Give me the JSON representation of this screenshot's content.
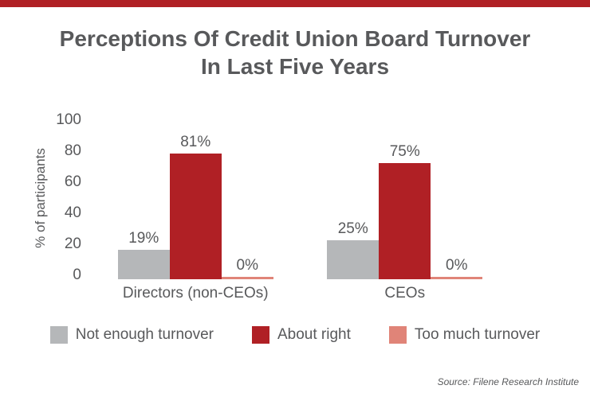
{
  "banner": {
    "color": "#b02025"
  },
  "title": {
    "line1": "Perceptions Of Credit Union Board Turnover",
    "line2": "In Last Five Years"
  },
  "chart_data": {
    "type": "bar",
    "title": "Perceptions Of Credit Union Board Turnover In Last Five Years",
    "xlabel": "",
    "ylabel": "% of participants",
    "ylim": [
      0,
      100
    ],
    "yticks": [
      0,
      20,
      40,
      60,
      80,
      100
    ],
    "grid": false,
    "legend_position": "bottom",
    "categories": [
      "Directors (non-CEOs)",
      "CEOs"
    ],
    "series": [
      {
        "name": "Not enough turnover",
        "color": "#b5b7b9",
        "values": [
          19,
          25
        ]
      },
      {
        "name": "About right",
        "color": "#b02025",
        "values": [
          81,
          75
        ]
      },
      {
        "name": "Too much turnover",
        "color": "#e08478",
        "values": [
          0,
          0
        ]
      }
    ],
    "data_labels": [
      [
        "19%",
        "81%",
        "0%"
      ],
      [
        "25%",
        "75%",
        "0%"
      ]
    ]
  },
  "source": "Source: Filene Research Institute"
}
